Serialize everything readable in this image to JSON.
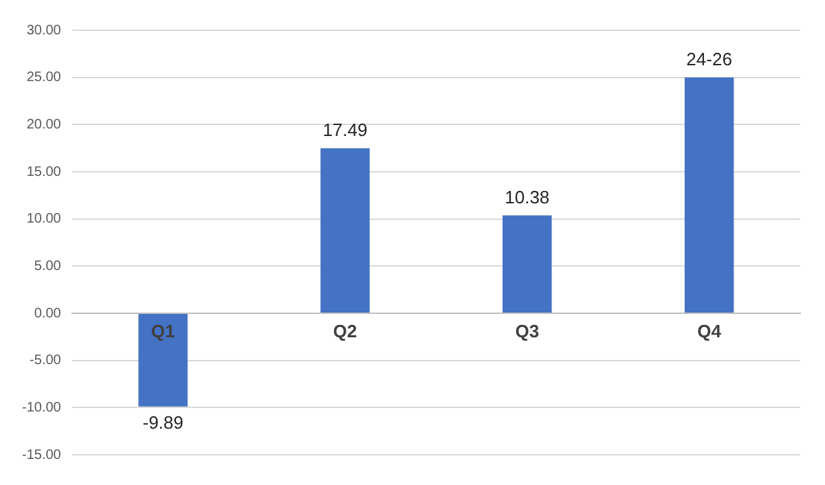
{
  "chart_data": {
    "type": "bar",
    "categories": [
      "Q1",
      "Q2",
      "Q3",
      "Q4"
    ],
    "values": [
      -9.89,
      17.49,
      10.38,
      25
    ],
    "value_labels": [
      "-9.89",
      "17.49",
      "10.38",
      "24-26"
    ],
    "color": "#4472c4",
    "ylim": [
      -15,
      30
    ],
    "yticks": [
      {
        "value": -15,
        "label": "-15.00"
      },
      {
        "value": -10,
        "label": "-10.00"
      },
      {
        "value": -5,
        "label": "-5.00"
      },
      {
        "value": 0,
        "label": "0.00"
      },
      {
        "value": 5,
        "label": "5.00"
      },
      {
        "value": 10,
        "label": "10.00"
      },
      {
        "value": 15,
        "label": "15.00"
      },
      {
        "value": 20,
        "label": "20.00"
      },
      {
        "value": 25,
        "label": "25.00"
      },
      {
        "value": 30,
        "label": "30.00"
      }
    ],
    "grid": "y",
    "legend": false
  }
}
